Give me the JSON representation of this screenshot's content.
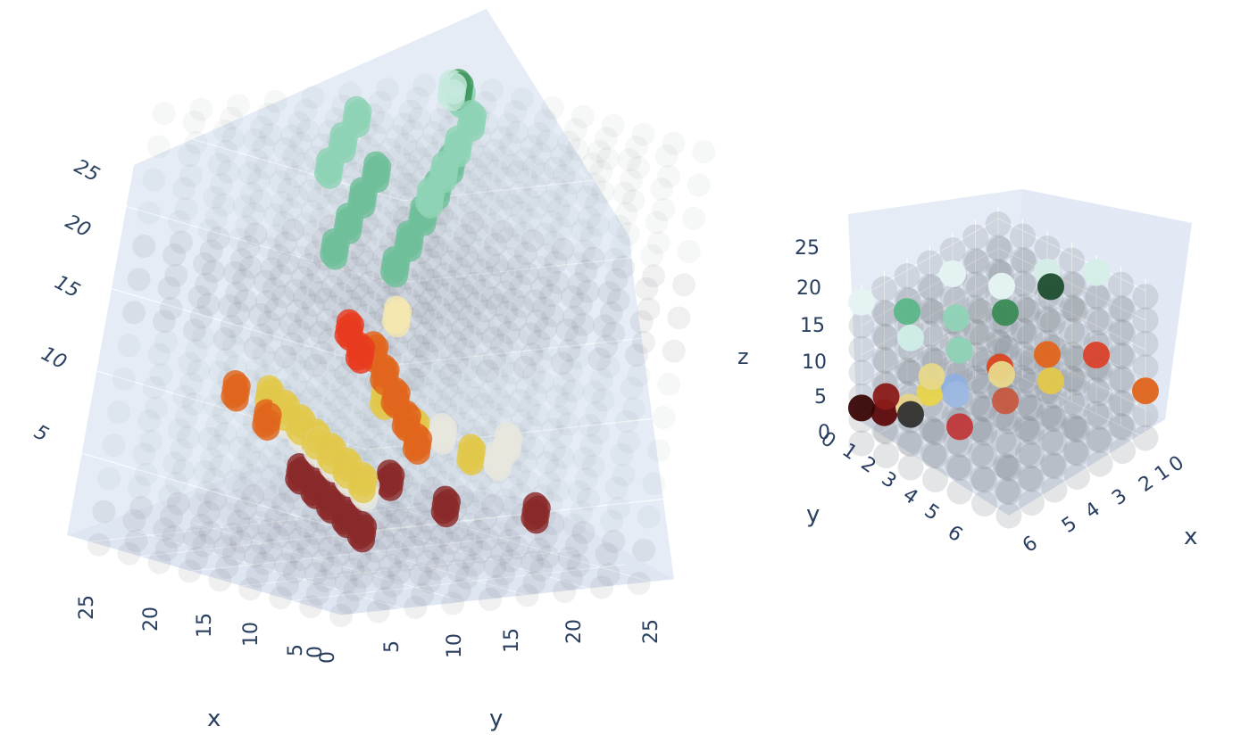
{
  "chart_data": [
    {
      "type": "scatter3d",
      "grid": true,
      "xaxis": {
        "title": "x",
        "range": [
          0,
          27
        ],
        "ticks": [
          "0",
          "5",
          "10",
          "15",
          "20",
          "25"
        ]
      },
      "yaxis": {
        "title": "y",
        "range": [
          0,
          27
        ],
        "ticks": [
          "0",
          "5",
          "10",
          "15",
          "20",
          "25"
        ]
      },
      "zaxis": {
        "title": "",
        "range": [
          0,
          27
        ],
        "ticks": [
          "5",
          "10",
          "15",
          "20",
          "25"
        ]
      },
      "layers": [
        {
          "z": 3,
          "color": "#8a2a2a",
          "points": [
            [
              6,
              6
            ],
            [
              10,
              8
            ],
            [
              14,
              10
            ],
            [
              18,
              12
            ],
            [
              22,
              14
            ],
            [
              10,
              16
            ],
            [
              18,
              18
            ],
            [
              6,
              20
            ]
          ]
        },
        {
          "z": 6,
          "color": "#e8e6de",
          "points": [
            [
              4,
              4
            ],
            [
              8,
              6
            ],
            [
              12,
              8
            ],
            [
              16,
              10
            ],
            [
              20,
              12
            ],
            [
              24,
              14
            ],
            [
              8,
              18
            ],
            [
              16,
              20
            ],
            [
              12,
              22
            ]
          ]
        },
        {
          "z": 7,
          "color": "#e2c84a",
          "points": [
            [
              2,
              2
            ],
            [
              6,
              4
            ],
            [
              10,
              6
            ],
            [
              14,
              8
            ],
            [
              18,
              10
            ],
            [
              22,
              12
            ],
            [
              26,
              14
            ],
            [
              6,
              14
            ],
            [
              14,
              16
            ],
            [
              22,
              20
            ]
          ]
        },
        {
          "z": 9,
          "color": "#e0651c",
          "points": [
            [
              2,
              6
            ],
            [
              8,
              10
            ],
            [
              14,
              14
            ],
            [
              20,
              18
            ],
            [
              26,
              22
            ],
            [
              12,
              2
            ],
            [
              20,
              6
            ]
          ]
        },
        {
          "z": 11,
          "color": "#e83b1f",
          "points": [
            [
              18,
              14
            ],
            [
              24,
              18
            ]
          ]
        },
        {
          "z": 12,
          "color": "#f4e6b0",
          "points": [
            [
              22,
              20
            ]
          ]
        },
        {
          "z": 20,
          "color": "#6fc09a",
          "points": [
            [
              2,
              2
            ],
            [
              8,
              8
            ],
            [
              14,
              14
            ],
            [
              20,
              20
            ],
            [
              26,
              26
            ],
            [
              8,
              2
            ],
            [
              14,
              8
            ],
            [
              20,
              14
            ],
            [
              26,
              20
            ]
          ]
        },
        {
          "z": 24,
          "color": "#8fd3b6",
          "points": [
            [
              2,
              4
            ],
            [
              8,
              10
            ],
            [
              14,
              16
            ],
            [
              20,
              22
            ],
            [
              26,
              26
            ],
            [
              12,
              4
            ],
            [
              18,
              10
            ],
            [
              24,
              16
            ]
          ]
        },
        {
          "z": 25,
          "color": "#3f9a5e",
          "points": [
            [
              24,
              24
            ]
          ]
        },
        {
          "z": 26,
          "color": "#c6e9de",
          "points": [
            [
              20,
              20
            ]
          ]
        }
      ]
    },
    {
      "type": "scatter3d",
      "grid": true,
      "xaxis": {
        "title": "x",
        "range": [
          0,
          6
        ],
        "ticks": [
          "0",
          "1",
          "2",
          "3",
          "4",
          "5",
          "6"
        ]
      },
      "yaxis": {
        "title": "y",
        "range": [
          0,
          6
        ],
        "ticks": [
          "0",
          "1",
          "2",
          "3",
          "4",
          "5",
          "6"
        ]
      },
      "zaxis": {
        "title": "z",
        "range": [
          0,
          27
        ],
        "ticks": [
          "0",
          "5",
          "10",
          "15",
          "20",
          "25"
        ]
      },
      "points": [
        {
          "x": 6,
          "y": 2,
          "z": 24,
          "color": "#d6efe8"
        },
        {
          "x": 4,
          "y": 2,
          "z": 26,
          "color": "#1f4e2f"
        },
        {
          "x": 2,
          "y": 2,
          "z": 26,
          "color": "#3a8a55"
        },
        {
          "x": 0,
          "y": 2,
          "z": 24,
          "color": "#8fd3b6"
        },
        {
          "x": 6,
          "y": 4,
          "z": 20,
          "color": "#d6efe8"
        },
        {
          "x": 4,
          "y": 4,
          "z": 22,
          "color": "#e6f6f3"
        },
        {
          "x": 2,
          "y": 4,
          "z": 21,
          "color": "#8fd3b6"
        },
        {
          "x": 0,
          "y": 4,
          "z": 22,
          "color": "#cfeee6"
        },
        {
          "x": 4,
          "y": 6,
          "z": 20,
          "color": "#e6f6f3"
        },
        {
          "x": 2,
          "y": 6,
          "z": 18,
          "color": "#5bb687"
        },
        {
          "x": 0,
          "y": 6,
          "z": 24,
          "color": "#e6f6f3"
        },
        {
          "x": 6,
          "y": 0,
          "z": 8,
          "color": "#e0651c"
        },
        {
          "x": 6,
          "y": 2,
          "z": 10,
          "color": "#d9412a"
        },
        {
          "x": 4,
          "y": 2,
          "z": 10,
          "color": "#e2c84a"
        },
        {
          "x": 2,
          "y": 2,
          "z": 11,
          "color": "#c75a40"
        },
        {
          "x": 0,
          "y": 2,
          "z": 11,
          "color": "#c0383a"
        },
        {
          "x": 6,
          "y": 4,
          "z": 6,
          "color": "#e0651c"
        },
        {
          "x": 4,
          "y": 4,
          "z": 7,
          "color": "#e8d88a"
        },
        {
          "x": 2,
          "y": 4,
          "z": 8,
          "color": "#9db8e0"
        },
        {
          "x": 0,
          "y": 4,
          "z": 9,
          "color": "#303030"
        },
        {
          "x": 5,
          "y": 5,
          "z": 4,
          "color": "#d9461e"
        },
        {
          "x": 3,
          "y": 5,
          "z": 5,
          "color": "#8fb0e0"
        },
        {
          "x": 1,
          "y": 5,
          "z": 6,
          "color": "#e6d48a"
        },
        {
          "x": 0,
          "y": 6,
          "z": 6,
          "color": "#3a0606"
        },
        {
          "x": 3,
          "y": 6,
          "z": 2,
          "color": "#e8d44a"
        },
        {
          "x": 1,
          "y": 6,
          "z": 3,
          "color": "#5e0a0a"
        },
        {
          "x": 0,
          "y": 5,
          "z": 10,
          "color": "#8b1a1a"
        },
        {
          "x": 2,
          "y": 5,
          "z": 9,
          "color": "#e6d88a"
        }
      ]
    }
  ]
}
